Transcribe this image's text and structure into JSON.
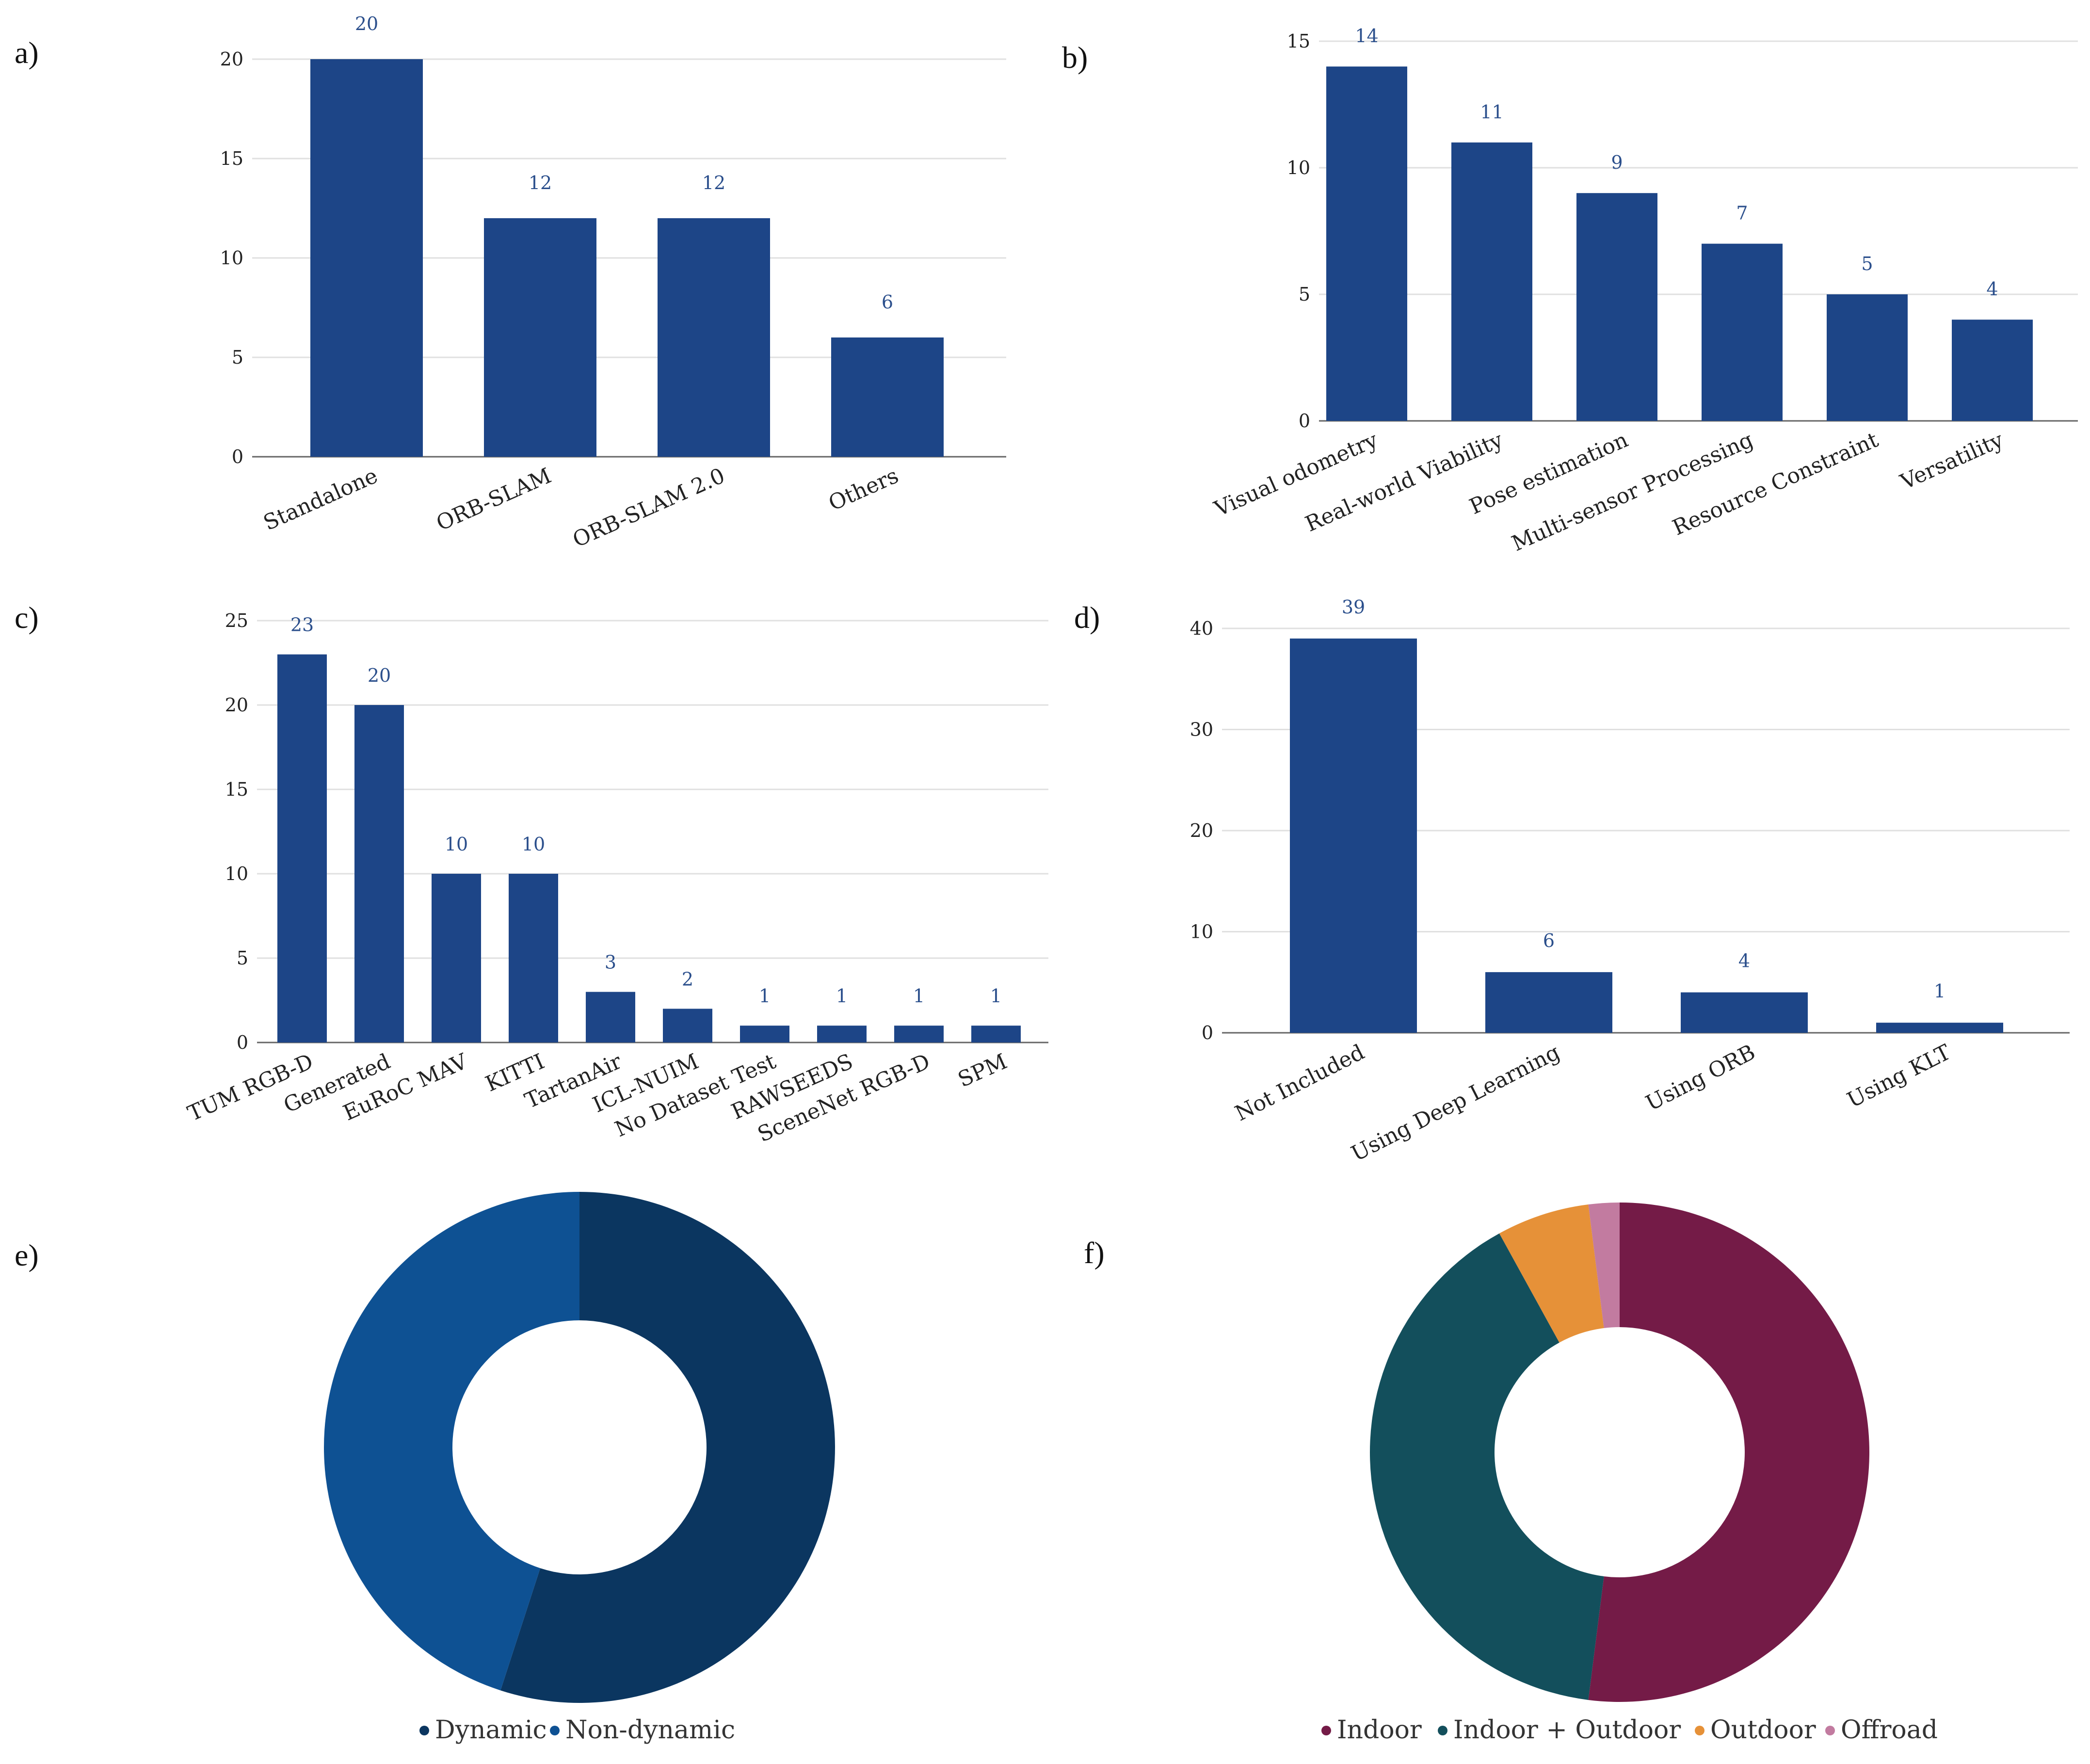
{
  "colors": {
    "bar": "#1d4587",
    "grid": "#e0e0e0",
    "axis": "#666666",
    "data_label": "#2b4f8c"
  },
  "panel_labels": [
    "a)",
    "b)",
    "c)",
    "d)",
    "e)",
    "f)"
  ],
  "chart_data": [
    {
      "panel": "a)",
      "type": "bar",
      "categories": [
        "Standalone",
        "ORB-SLAM",
        "ORB-SLAM 2.0",
        "Others"
      ],
      "values": [
        20,
        12,
        12,
        6
      ],
      "ylim": [
        0,
        20
      ],
      "yticks": [
        0,
        5,
        10,
        15,
        20
      ],
      "grid": true
    },
    {
      "panel": "b)",
      "type": "bar",
      "categories": [
        "Visual odometry",
        "Real-world Viability",
        "Pose estimation",
        "Multi-sensor Processing",
        "Resource Constraint",
        "Versatility"
      ],
      "values": [
        14,
        11,
        9,
        7,
        5,
        4
      ],
      "ylim": [
        0,
        15
      ],
      "yticks": [
        0,
        5,
        10,
        15
      ],
      "grid": true
    },
    {
      "panel": "c)",
      "type": "bar",
      "categories": [
        "TUM RGB-D",
        "Generated",
        "EuRoC MAV",
        "KITTI",
        "TartanAir",
        "ICL-NUIM",
        "No Dataset Test",
        "RAWSEEDS",
        "SceneNet RGB-D",
        "SPM"
      ],
      "values": [
        23,
        20,
        10,
        10,
        3,
        2,
        1,
        1,
        1,
        1
      ],
      "ylim": [
        0,
        25
      ],
      "yticks": [
        0,
        5,
        10,
        15,
        20,
        25
      ],
      "grid": true
    },
    {
      "panel": "d)",
      "type": "bar",
      "categories": [
        "Not Included",
        "Using Deep Learning",
        "Using ORB",
        "Using KLT"
      ],
      "values": [
        39,
        6,
        4,
        1
      ],
      "ylim": [
        0,
        40
      ],
      "yticks": [
        0,
        10,
        20,
        30,
        40
      ],
      "grid": true
    },
    {
      "panel": "e)",
      "type": "pie",
      "donut": true,
      "labels": [
        "Dynamic",
        "Non-dynamic"
      ],
      "values": [
        55,
        45
      ],
      "colors": [
        "#0b3660",
        "#0e5193"
      ],
      "legend": "bottom"
    },
    {
      "panel": "f)",
      "type": "pie",
      "donut": true,
      "labels": [
        "Indoor",
        "Indoor + Outdoor",
        "Outdoor",
        "Offroad"
      ],
      "values": [
        52,
        40,
        6,
        2
      ],
      "colors": [
        "#741b47",
        "#134f5c",
        "#e69138",
        "#c27ba0"
      ],
      "legend": "bottom"
    }
  ]
}
